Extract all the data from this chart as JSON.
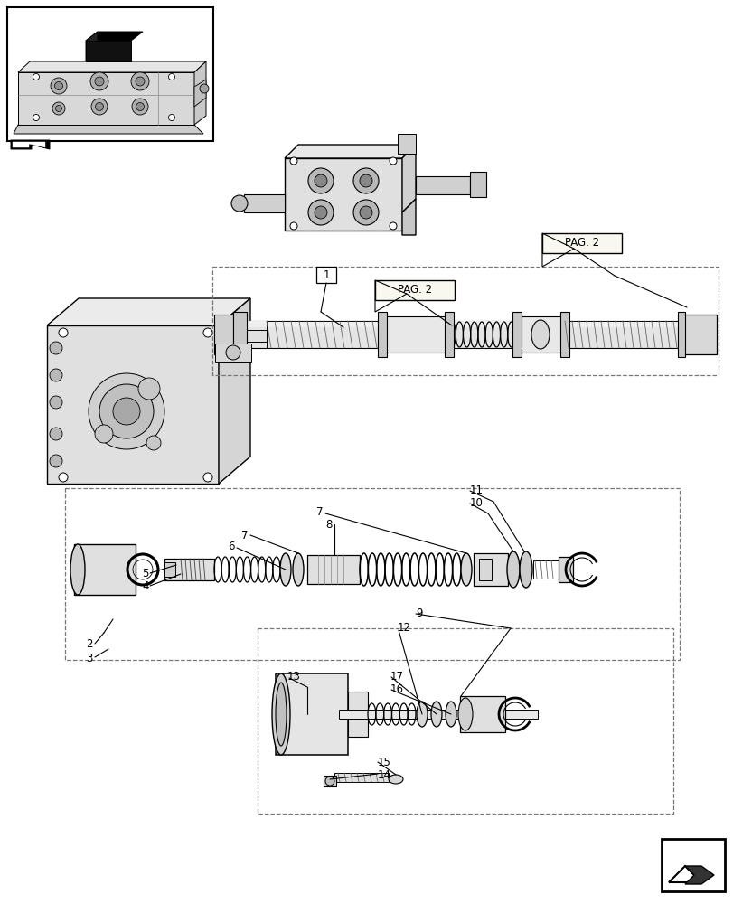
{
  "bg_color": "#ffffff",
  "fig_width": 8.12,
  "fig_height": 10.0,
  "dpi": 100,
  "gray_light": "#e8e8e8",
  "gray_mid": "#d0d0d0",
  "gray_dark": "#a0a0a0",
  "black": "#000000",
  "white": "#ffffff"
}
